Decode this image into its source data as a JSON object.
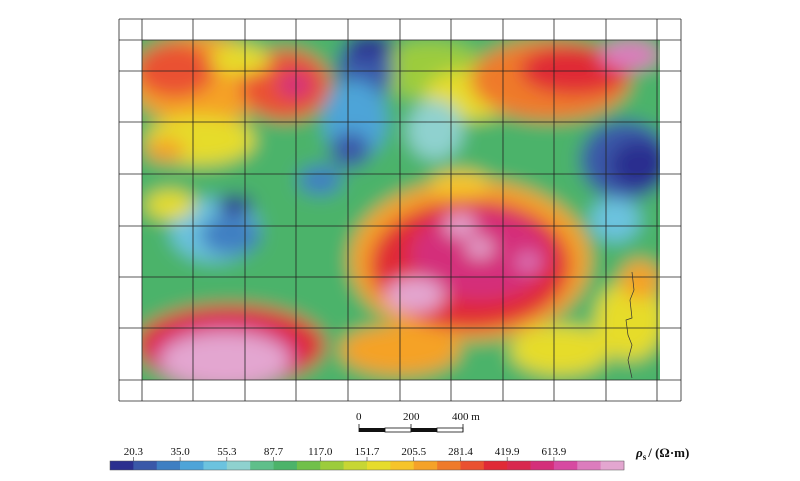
{
  "scale_bar": {
    "labels": [
      "0",
      "200",
      "400 m"
    ]
  },
  "legend": {
    "unit_symbol": "ρ",
    "unit_subscript": "s",
    "unit_rest": "/ (Ω·m)",
    "tick_labels": [
      "20.3",
      "35.0",
      "55.3",
      "87.7",
      "117.0",
      "151.7",
      "205.5",
      "281.4",
      "419.9",
      "613.9"
    ],
    "colors": [
      "#2b2f8f",
      "#3a58a8",
      "#3f7fc2",
      "#4ea4d8",
      "#6cc3df",
      "#8fd1cf",
      "#5fbf8a",
      "#4cb36a",
      "#70c04a",
      "#9ccc3c",
      "#c7d634",
      "#e6dc2c",
      "#f6c42a",
      "#f5a228",
      "#ef7a2a",
      "#ea5130",
      "#e02a36",
      "#d8294e",
      "#d42f7a",
      "#d74aa1",
      "#dc7cbd",
      "#e3a6d0"
    ]
  },
  "map": {
    "grid_columns": 11,
    "grid_rows": 7
  }
}
